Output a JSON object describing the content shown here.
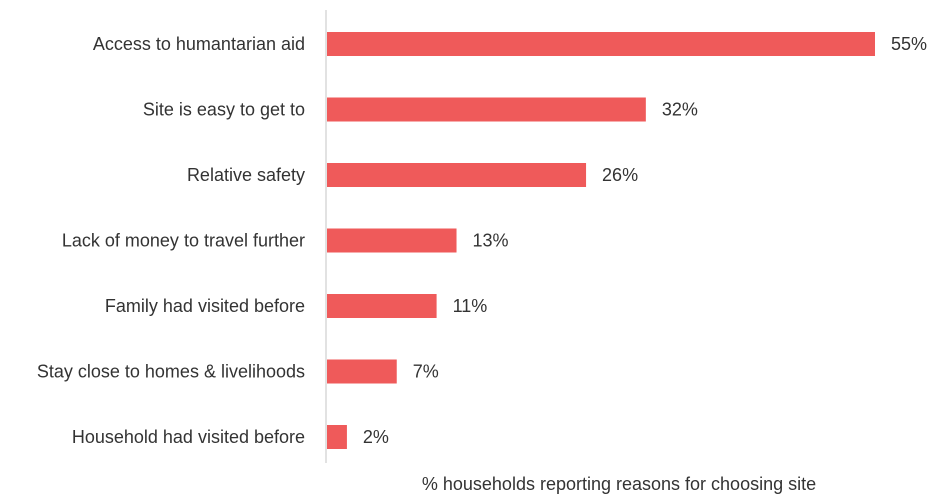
{
  "chart_data": {
    "type": "bar",
    "orientation": "horizontal",
    "categories": [
      "Access to humantarian aid",
      "Site is easy to get to",
      "Relative safety",
      "Lack of money to travel further",
      "Family had visited before",
      "Stay close to homes & livelihoods",
      "Household had visited before"
    ],
    "values": [
      55,
      32,
      26,
      13,
      11,
      7,
      2
    ],
    "value_labels": [
      "55%",
      "32%",
      "26%",
      "13%",
      "11%",
      "7%",
      "2%"
    ],
    "xlabel": "% households reporting reasons for choosing site",
    "ylabel": "",
    "xlim": [
      0,
      55
    ],
    "grid": false,
    "bar_color": "#ef5a5a",
    "axis_color": "#d9d9d9",
    "text_color": "#333333"
  }
}
